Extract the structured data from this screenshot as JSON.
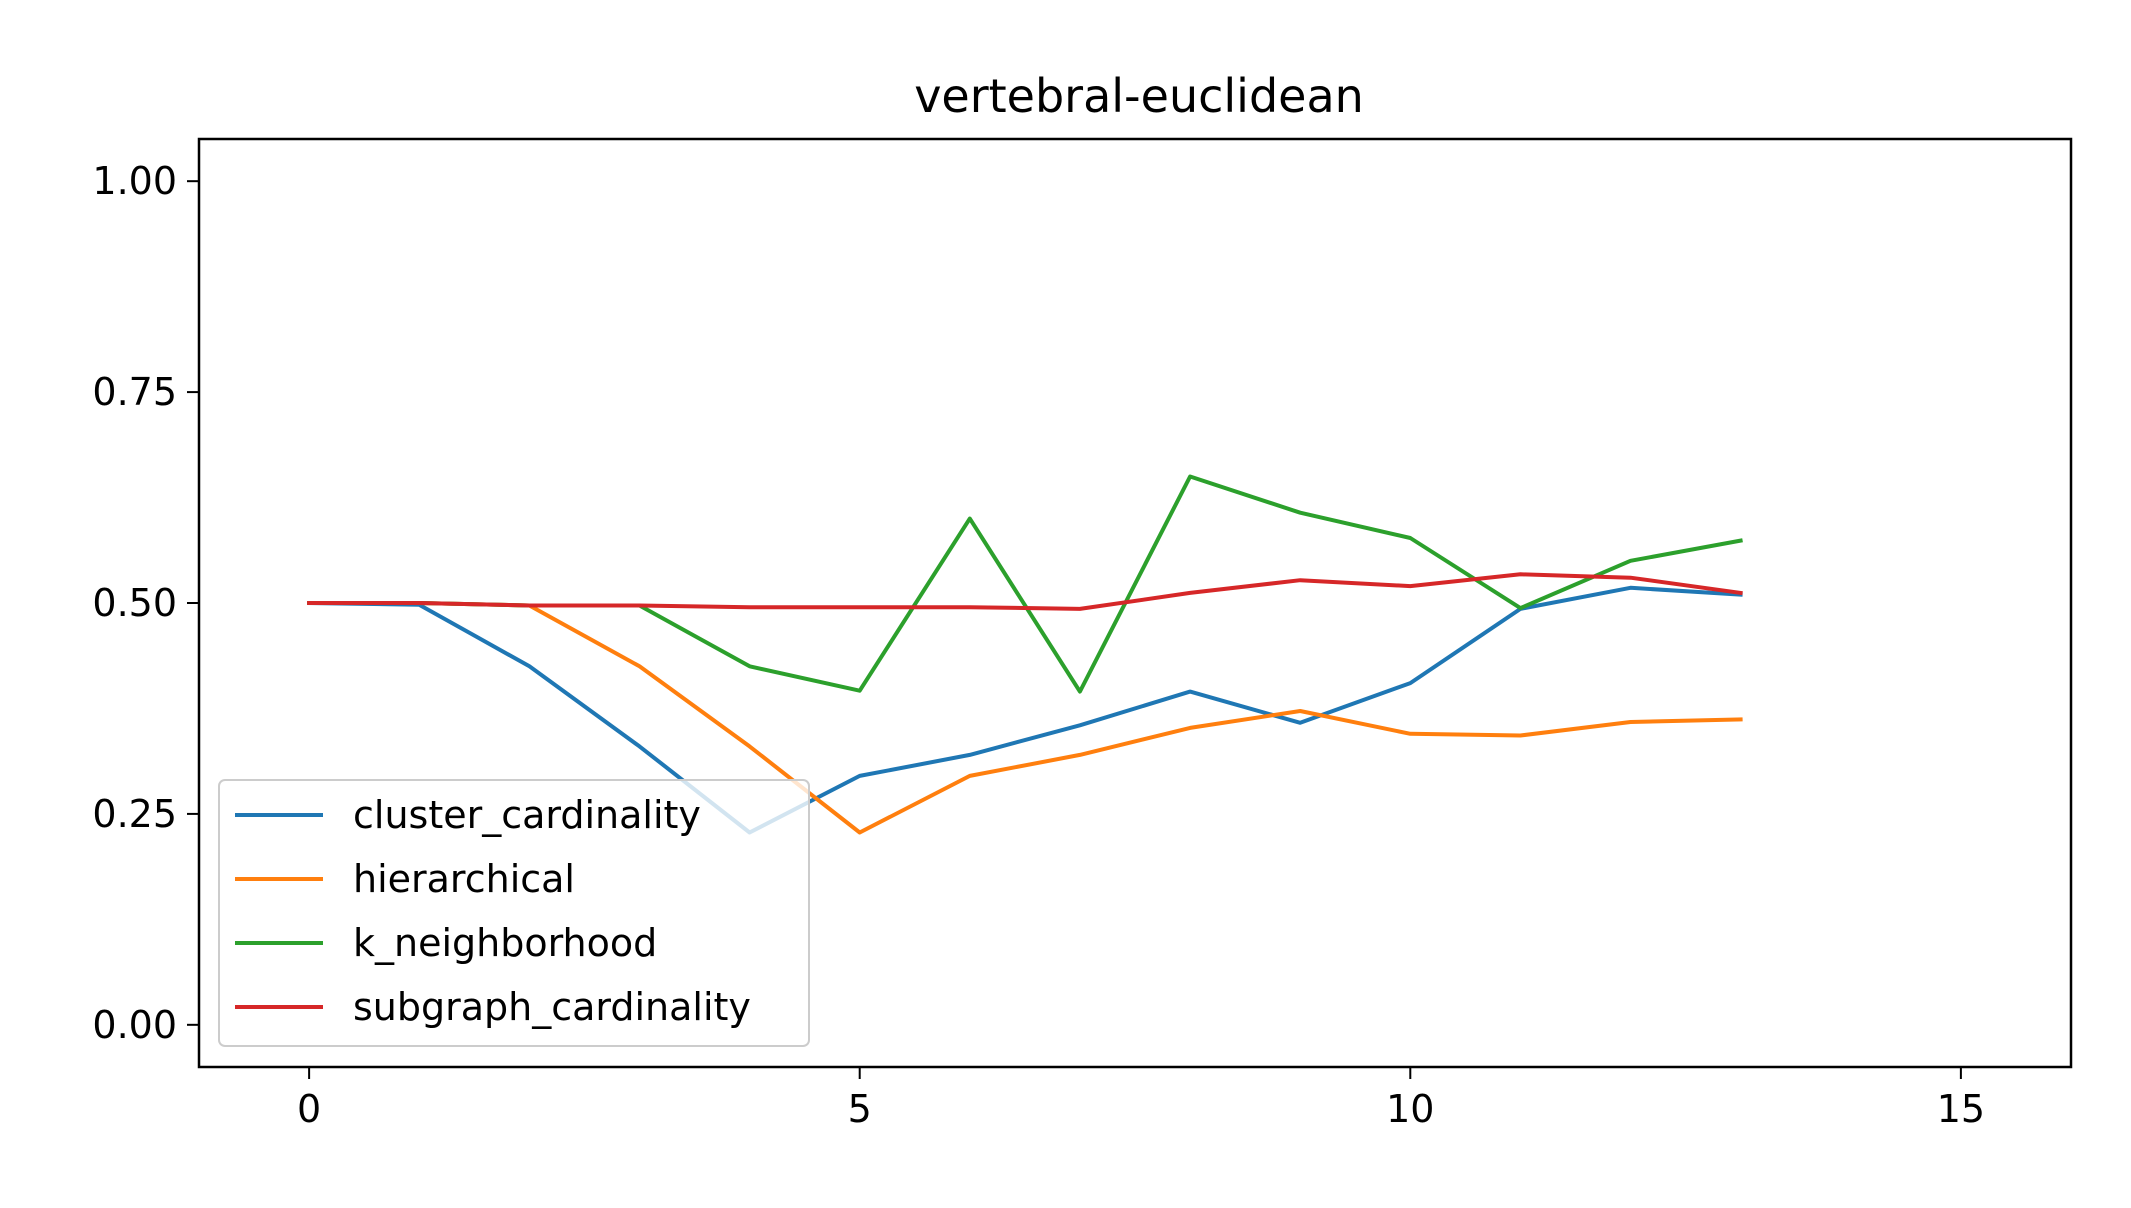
{
  "chart_data": {
    "type": "line",
    "title": "vertebral-euclidean",
    "xlabel": "",
    "ylabel": "",
    "xlim": [
      -1,
      16
    ],
    "ylim": [
      -0.05,
      1.05
    ],
    "xticks": [
      0,
      5,
      10,
      15
    ],
    "xtick_labels": [
      "0",
      "5",
      "10",
      "15"
    ],
    "yticks": [
      0.0,
      0.25,
      0.5,
      0.75,
      1.0
    ],
    "ytick_labels": [
      "0.00",
      "0.25",
      "0.50",
      "0.75",
      "1.00"
    ],
    "grid": false,
    "legend_position": "lower-left",
    "x": [
      0,
      1,
      2,
      3,
      4,
      5,
      6,
      7,
      8,
      9,
      10,
      11,
      12,
      13
    ],
    "series": [
      {
        "name": "cluster_cardinality",
        "color": "#1f77b4",
        "values": [
          0.5,
          0.498,
          0.425,
          0.33,
          0.228,
          0.295,
          0.32,
          0.355,
          0.395,
          0.358,
          0.405,
          0.493,
          0.518,
          0.51
        ]
      },
      {
        "name": "hierarchical",
        "color": "#ff7f0e",
        "values": [
          0.5,
          0.5,
          0.497,
          0.425,
          0.33,
          0.228,
          0.295,
          0.32,
          0.352,
          0.372,
          0.345,
          0.343,
          0.359,
          0.362
        ]
      },
      {
        "name": "k_neighborhood",
        "color": "#2ca02c",
        "values": [
          0.5,
          0.5,
          0.497,
          0.497,
          0.425,
          0.396,
          0.6,
          0.395,
          0.65,
          0.607,
          0.577,
          0.494,
          0.55,
          0.574
        ]
      },
      {
        "name": "subgraph_cardinality",
        "color": "#d62728",
        "values": [
          0.5,
          0.5,
          0.497,
          0.497,
          0.495,
          0.495,
          0.495,
          0.493,
          0.512,
          0.527,
          0.52,
          0.534,
          0.53,
          0.512
        ]
      }
    ]
  }
}
